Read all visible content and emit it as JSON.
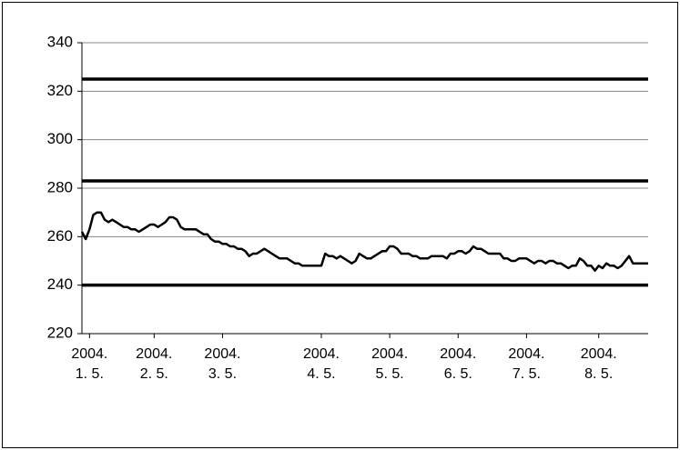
{
  "chart_data": {
    "type": "line",
    "xlim": [
      0,
      149
    ],
    "xticks": [
      {
        "value": 2,
        "label": "2004. 1. 5."
      },
      {
        "value": 19,
        "label": "2004. 2. 5."
      },
      {
        "value": 37,
        "label": "2004. 3. 5."
      },
      {
        "value": 63,
        "label": "2004. 4. 5."
      },
      {
        "value": 81,
        "label": "2004. 5. 5."
      },
      {
        "value": 99,
        "label": "2004. 6. 5."
      },
      {
        "value": 117,
        "label": "2004. 7. 5."
      },
      {
        "value": 136,
        "label": "2004. 8. 5."
      }
    ],
    "ylim": [
      220,
      340
    ],
    "yticks": [
      220,
      240,
      260,
      280,
      300,
      320,
      340
    ],
    "grid": true,
    "reference_lines": [
      325,
      283,
      240
    ],
    "color": "#000000",
    "values": [
      262,
      259,
      263,
      269,
      270,
      270,
      267,
      266,
      267,
      266,
      265,
      264,
      264,
      263,
      263,
      262,
      263,
      264,
      265,
      265,
      264,
      265,
      266,
      268,
      268,
      267,
      264,
      263,
      263,
      263,
      263,
      262,
      261,
      261,
      259,
      258,
      258,
      257,
      257,
      256,
      256,
      255,
      255,
      254,
      252,
      253,
      253,
      254,
      255,
      254,
      253,
      252,
      251,
      251,
      251,
      250,
      249,
      249,
      248,
      248,
      248,
      248,
      248,
      248,
      253,
      252,
      252,
      251,
      252,
      251,
      250,
      249,
      250,
      253,
      252,
      251,
      251,
      252,
      253,
      254,
      254,
      256,
      256,
      255,
      253,
      253,
      253,
      252,
      252,
      251,
      251,
      251,
      252,
      252,
      252,
      252,
      251,
      253,
      253,
      254,
      254,
      253,
      254,
      256,
      255,
      255,
      254,
      253,
      253,
      253,
      253,
      251,
      251,
      250,
      250,
      251,
      251,
      251,
      250,
      249,
      250,
      250,
      249,
      250,
      250,
      249,
      249,
      248,
      247,
      248,
      248,
      251,
      250,
      248,
      248,
      246,
      248,
      247,
      249,
      248,
      248,
      247,
      248,
      250,
      252,
      249,
      249,
      249,
      249,
      249
    ]
  }
}
